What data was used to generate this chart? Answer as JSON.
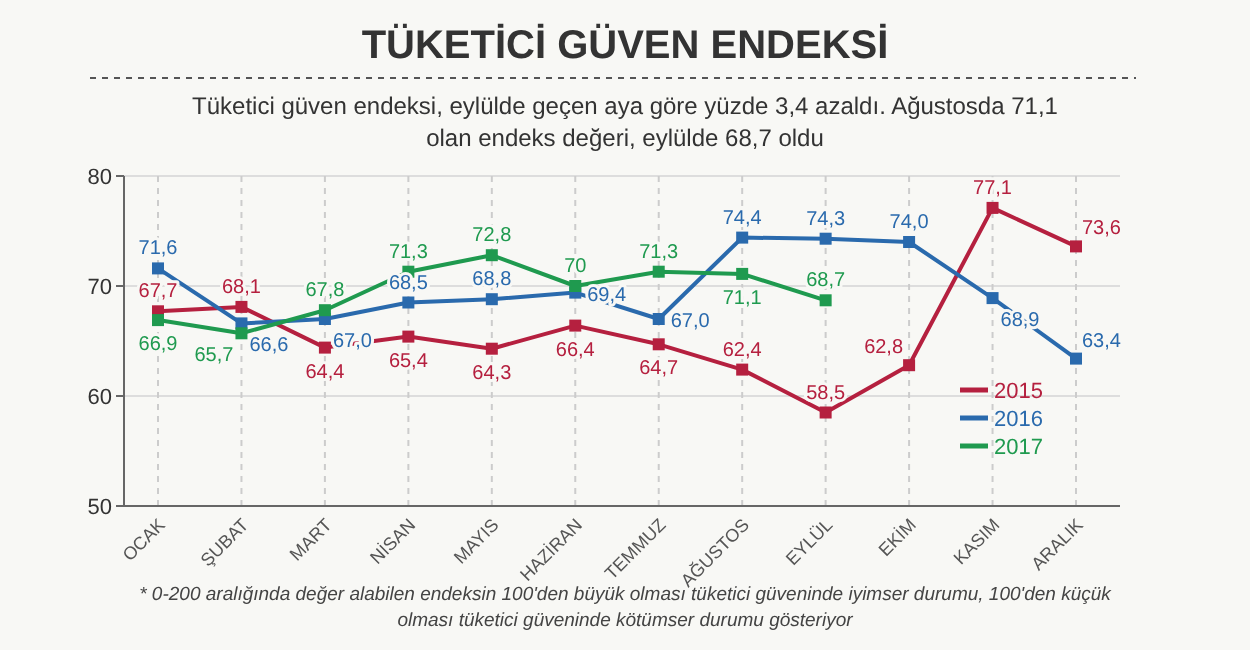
{
  "chart_data": {
    "type": "line",
    "title": "TÜKETİCİ GÜVEN ENDEKSİ",
    "subtitle": "Tüketici güven endeksi, eylülde geçen aya göre yüzde 3,4 azaldı. Ağustosda 71,1 olan endeks değeri, eylülde 68,7 oldu",
    "annotations": [
      "* 0-200 aralığında değer alabilen endeksin 100'den büyük olması tüketici güveninde iyimser durumu, 100'den küçük olması tüketici güveninde kötümser durumu gösteriyor"
    ],
    "categories": [
      "OCAK",
      "ŞUBAT",
      "MART",
      "NİSAN",
      "MAYIS",
      "HAZİRAN",
      "TEMMUZ",
      "AĞUSTOS",
      "EYLÜL",
      "EKİM",
      "KASIM",
      "ARALIK"
    ],
    "series": [
      {
        "name": "2015",
        "color": "#b5203f",
        "values": [
          67.7,
          68.1,
          64.4,
          65.4,
          64.3,
          66.4,
          64.7,
          62.4,
          58.5,
          62.8,
          77.1,
          73.6
        ],
        "value_labels": [
          "67,7",
          "68,1",
          "64,4",
          "65,4",
          "64,3",
          "66,4",
          "64,7",
          "62,4",
          "58,5",
          "62,8",
          "77,1",
          "73,6"
        ]
      },
      {
        "name": "2016",
        "color": "#2a6aad",
        "values": [
          71.6,
          66.6,
          67.0,
          68.5,
          68.8,
          69.4,
          67.0,
          74.4,
          74.3,
          74.0,
          68.9,
          63.4
        ],
        "value_labels": [
          "71,6",
          "66,6",
          "67,0",
          "68,5",
          "68,8",
          "69,4",
          "67,0",
          "74,4",
          "74,3",
          "74,0",
          "68,9",
          "63,4"
        ]
      },
      {
        "name": "2017",
        "color": "#1f9a4f",
        "values": [
          66.9,
          65.7,
          67.8,
          71.3,
          72.8,
          70,
          71.3,
          71.1,
          68.7,
          null,
          null,
          null
        ],
        "value_labels": [
          "66,9",
          "65,7",
          "67,8",
          "71,3",
          "72,8",
          "70",
          "71,3",
          "71,1",
          "68,7",
          null,
          null,
          null
        ]
      }
    ],
    "ylim": [
      50,
      80
    ],
    "yticks": [
      50,
      60,
      70,
      80
    ],
    "grid": true,
    "legend": "bottom right",
    "marker": "square",
    "line_style": "solid"
  }
}
